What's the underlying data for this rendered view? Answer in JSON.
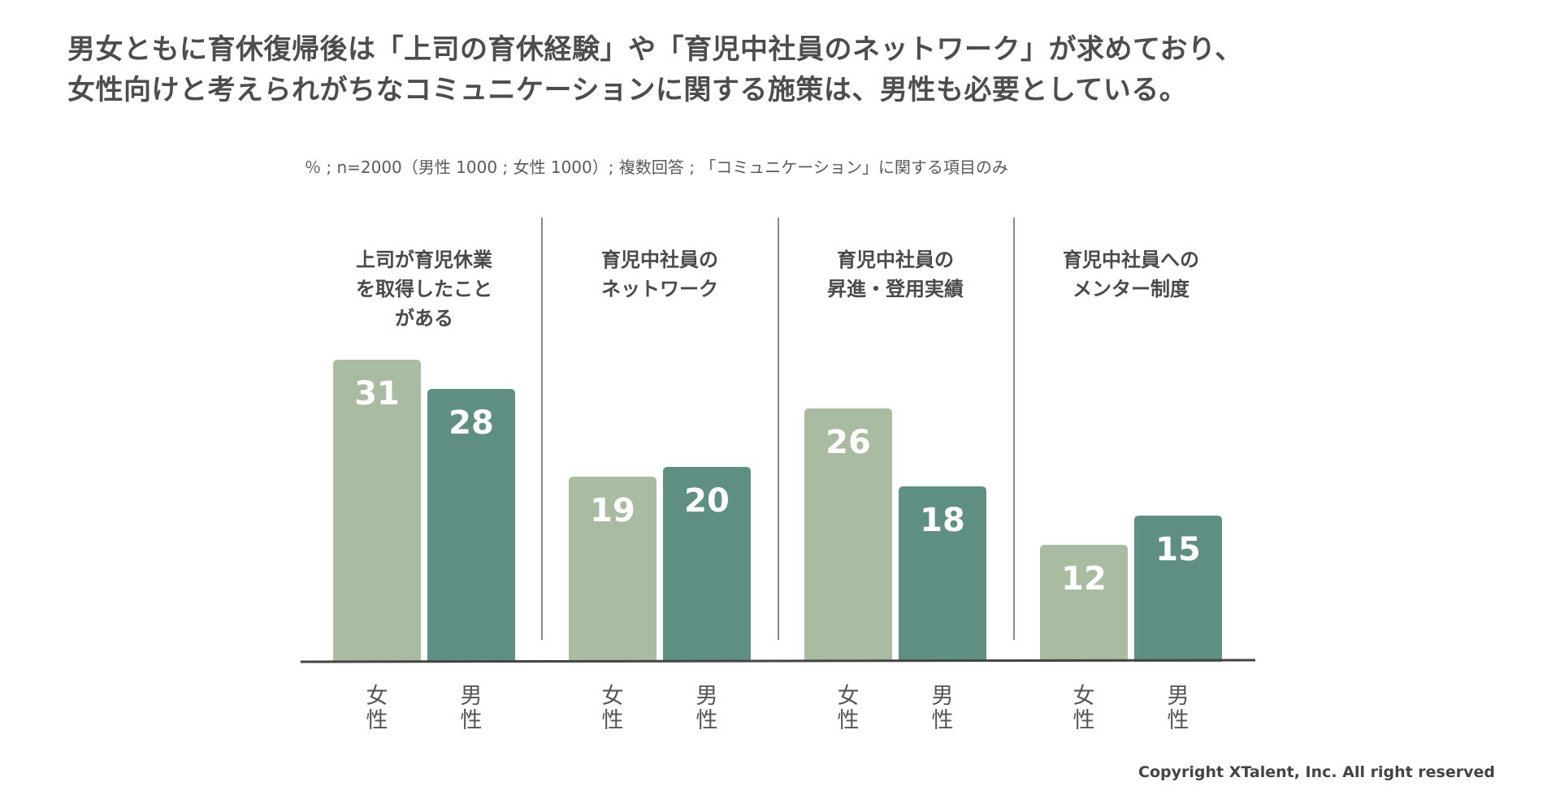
{
  "headline": {
    "line1": "男女ともに育休復帰後は「上司の育休経験」や「育児中社員のネットワーク」が求めており、",
    "line2": "女性向けと考えられがちなコミュニケーションに関する施策は、男性も必要としている。"
  },
  "note": "％ ; n=2000（男性 1000 ;  女性 1000）; 複数回答 ; 「コミュニケーション」に関する項目のみ",
  "copyright": "Copyright XTalent, Inc. All right reserved",
  "colors": {
    "female": "#a9bba1",
    "male": "#5f8f83",
    "axis": "#444444",
    "divider": "#888888"
  },
  "chart_data": {
    "type": "bar",
    "title": "",
    "ylabel": "%",
    "ylim": [
      0,
      31
    ],
    "categories": [
      [
        "上司が育児休業",
        "を取得したこと",
        "がある"
      ],
      [
        "育児中社員の",
        "ネットワーク"
      ],
      [
        "育児中社員の",
        "昇進・登用実績"
      ],
      [
        "育児中社員への",
        "メンター制度"
      ]
    ],
    "series": [
      {
        "name": "女性",
        "label_lines": [
          "女",
          "性"
        ],
        "values": [
          31,
          19,
          26,
          12
        ]
      },
      {
        "name": "男性",
        "label_lines": [
          "男",
          "性"
        ],
        "values": [
          28,
          20,
          18,
          15
        ]
      }
    ]
  }
}
